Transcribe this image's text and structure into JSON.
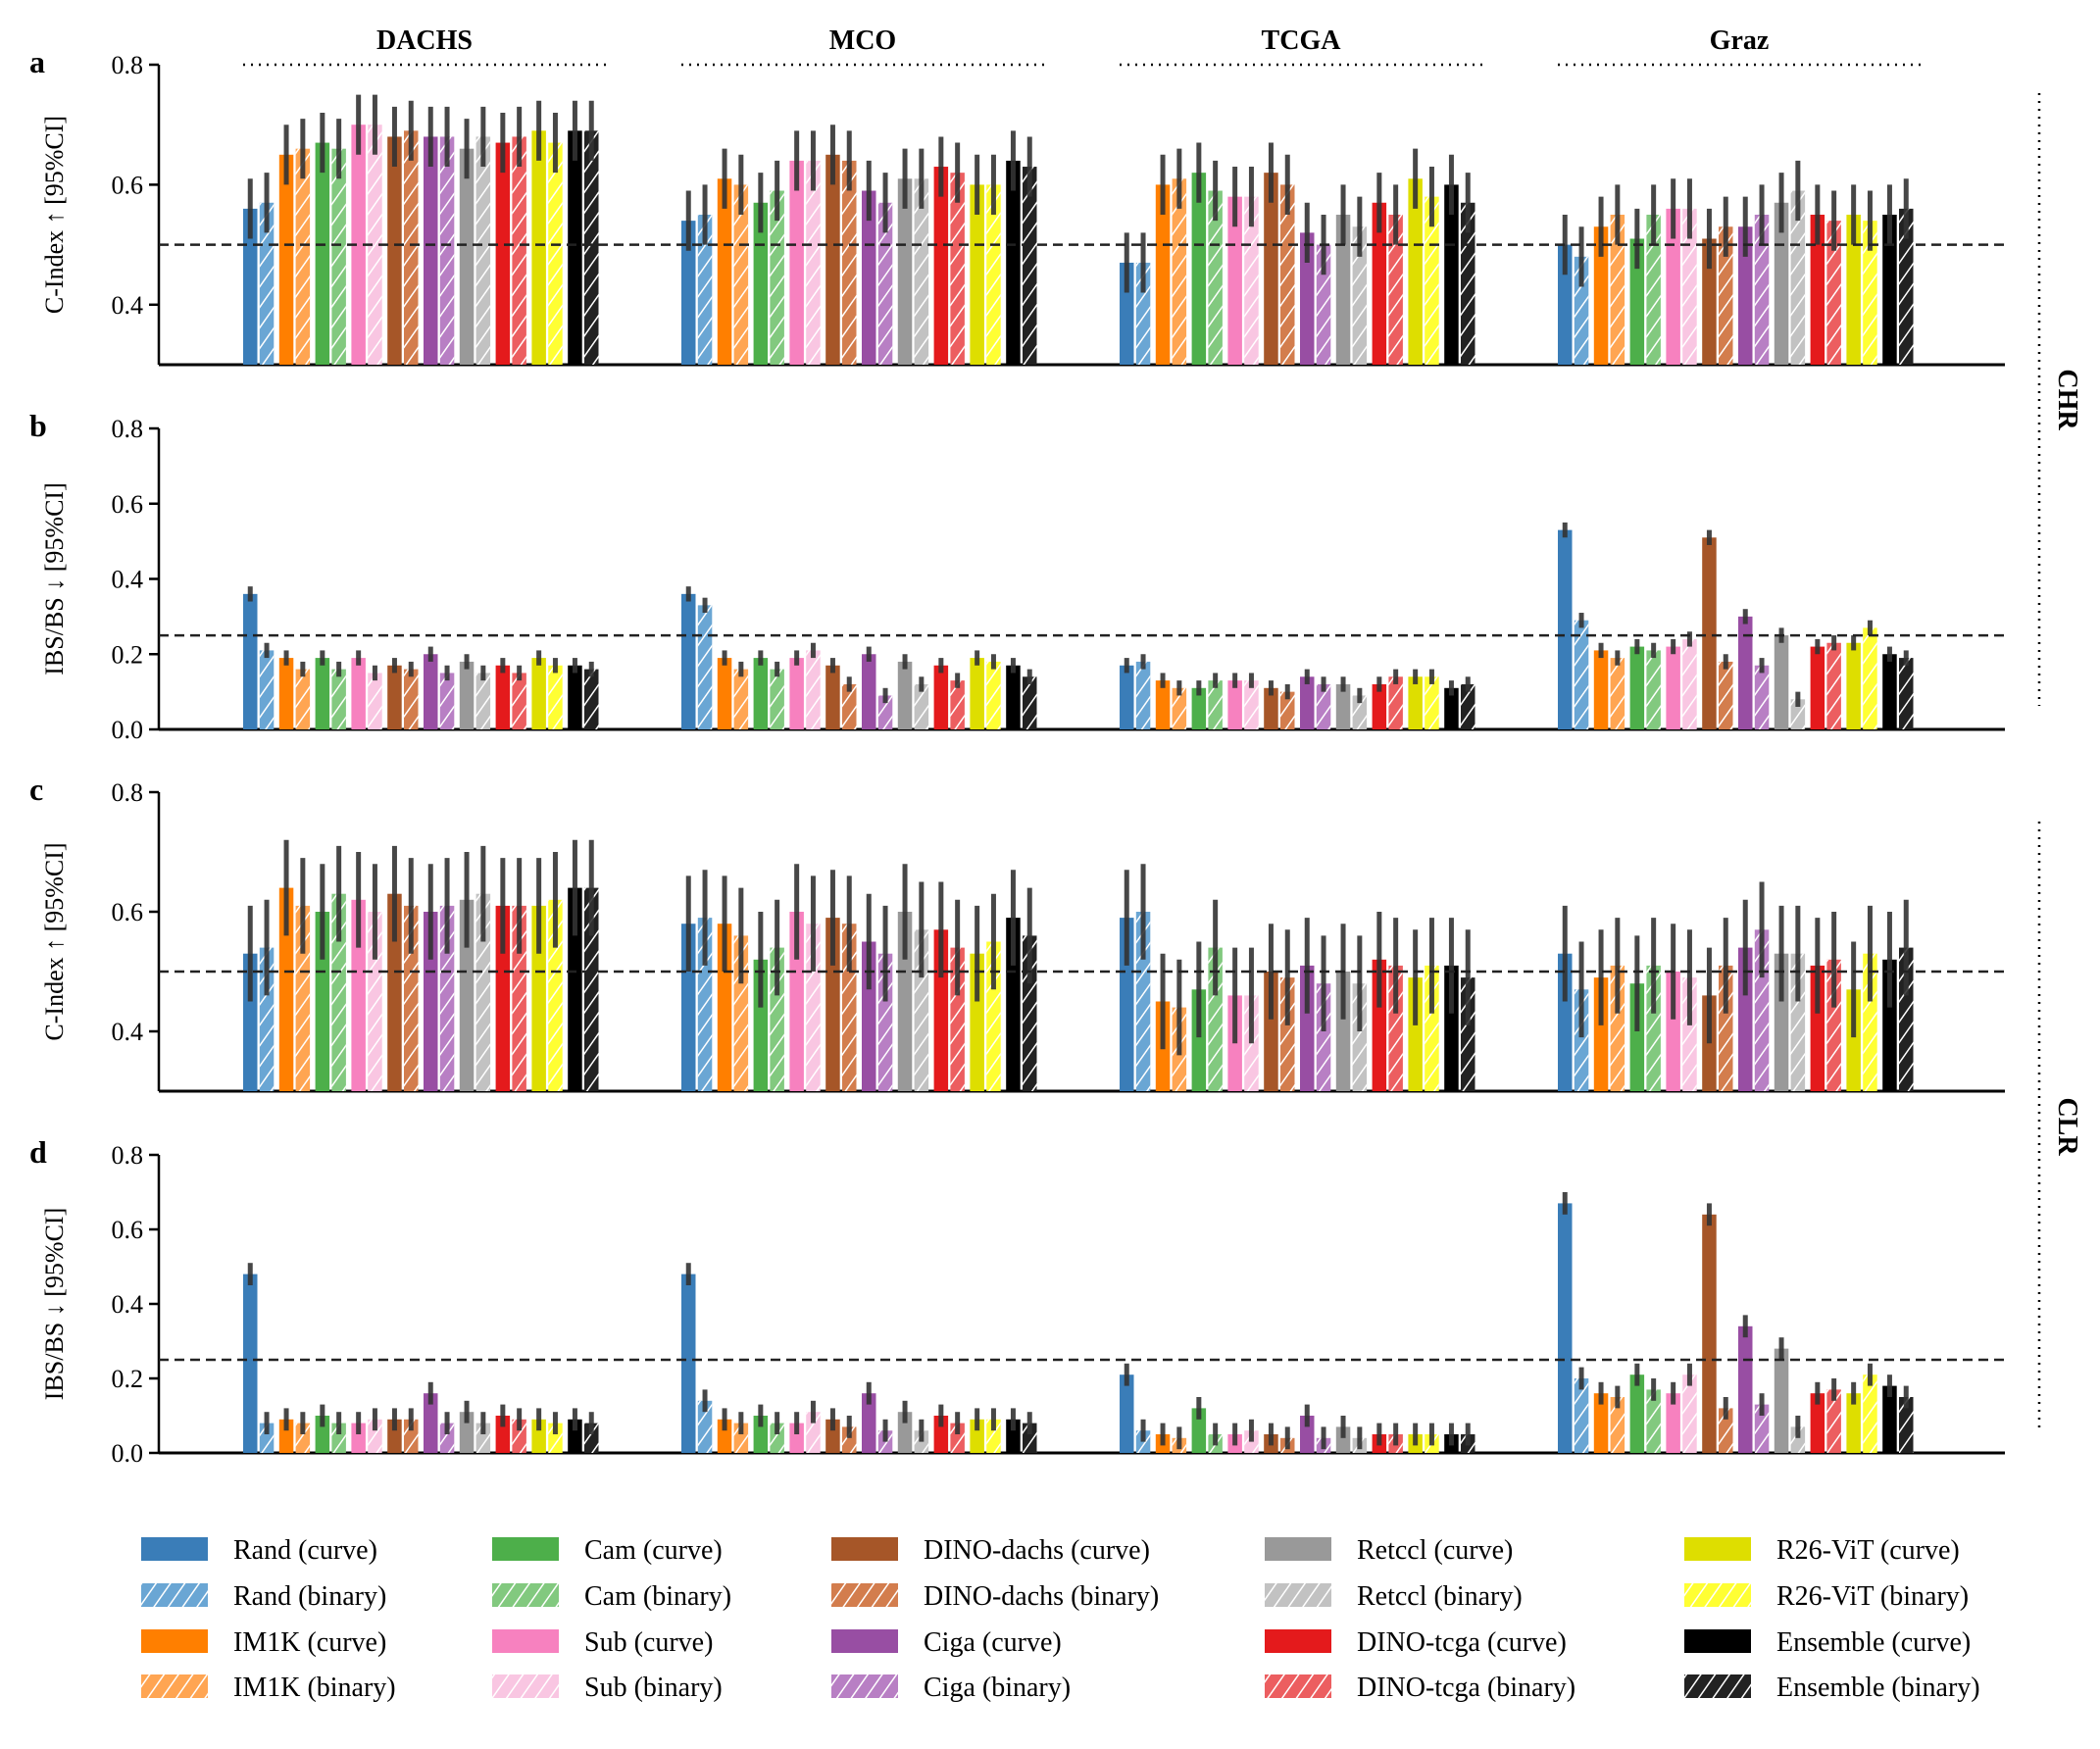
{
  "chart_data": {
    "type": "bar",
    "groups": [
      "DACHS",
      "MCO",
      "TCGA",
      "Graz"
    ],
    "side_labels": [
      "CHR",
      "CLR"
    ],
    "series": [
      {
        "name": "Rand (curve)",
        "color": "#3a7db8",
        "hatch": false
      },
      {
        "name": "Rand (binary)",
        "color": "#6aa6d4",
        "hatch": true
      },
      {
        "name": "IM1K (curve)",
        "color": "#ff7f00",
        "hatch": false
      },
      {
        "name": "IM1K (binary)",
        "color": "#ffa552",
        "hatch": true
      },
      {
        "name": "Cam (curve)",
        "color": "#4daf4a",
        "hatch": false
      },
      {
        "name": "Cam (binary)",
        "color": "#82c97f",
        "hatch": true
      },
      {
        "name": "Sub (curve)",
        "color": "#f781bf",
        "hatch": false
      },
      {
        "name": "Sub (binary)",
        "color": "#f9c6e2",
        "hatch": true
      },
      {
        "name": "DINO-dachs (curve)",
        "color": "#a65628",
        "hatch": false
      },
      {
        "name": "DINO-dachs (binary)",
        "color": "#d37d4d",
        "hatch": true
      },
      {
        "name": "Ciga (curve)",
        "color": "#984ea3",
        "hatch": false
      },
      {
        "name": "Ciga (binary)",
        "color": "#b87fc4",
        "hatch": true
      },
      {
        "name": "Retccl (curve)",
        "color": "#999999",
        "hatch": false
      },
      {
        "name": "Retccl (binary)",
        "color": "#c2c2c2",
        "hatch": true
      },
      {
        "name": "DINO-tcga (curve)",
        "color": "#e41a1c",
        "hatch": false
      },
      {
        "name": "DINO-tcga (binary)",
        "color": "#ec5e60",
        "hatch": true
      },
      {
        "name": "R26-ViT (curve)",
        "color": "#dede00",
        "hatch": false
      },
      {
        "name": "R26-ViT (binary)",
        "color": "#ffff33",
        "hatch": true
      },
      {
        "name": "Ensemble (curve)",
        "color": "#000000",
        "hatch": false
      },
      {
        "name": "Ensemble (binary)",
        "color": "#222222",
        "hatch": true
      }
    ],
    "panels": [
      {
        "letter": "a",
        "ylabel": "C-Index ↑ [95%CI]",
        "ylim": [
          0.3,
          0.8
        ],
        "yticks": [
          "0.4",
          "0.6",
          "0.8"
        ],
        "ytick_values": [
          0.4,
          0.6,
          0.8
        ],
        "reference_line": 0.5,
        "values": [
          [
            0.56,
            0.57,
            0.65,
            0.66,
            0.67,
            0.66,
            0.7,
            0.7,
            0.68,
            0.69,
            0.68,
            0.68,
            0.66,
            0.68,
            0.67,
            0.68,
            0.69,
            0.67,
            0.69,
            0.69
          ],
          [
            0.54,
            0.55,
            0.61,
            0.6,
            0.57,
            0.59,
            0.64,
            0.64,
            0.65,
            0.64,
            0.59,
            0.57,
            0.61,
            0.61,
            0.63,
            0.62,
            0.6,
            0.6,
            0.64,
            0.63
          ],
          [
            0.47,
            0.47,
            0.6,
            0.61,
            0.62,
            0.59,
            0.58,
            0.58,
            0.62,
            0.6,
            0.52,
            0.5,
            0.55,
            0.53,
            0.57,
            0.55,
            0.61,
            0.58,
            0.6,
            0.57
          ],
          [
            0.5,
            0.48,
            0.53,
            0.55,
            0.51,
            0.55,
            0.56,
            0.56,
            0.51,
            0.53,
            0.53,
            0.55,
            0.57,
            0.59,
            0.55,
            0.54,
            0.55,
            0.54,
            0.55,
            0.56
          ]
        ],
        "ci_halfwidth": 0.05
      },
      {
        "letter": "b",
        "ylabel": "IBS/BS ↓ [95%CI]",
        "ylim": [
          0.0,
          0.8
        ],
        "yticks": [
          "0.0",
          "0.2",
          "0.4",
          "0.6",
          "0.8"
        ],
        "ytick_values": [
          0.0,
          0.2,
          0.4,
          0.6,
          0.8
        ],
        "reference_line": 0.25,
        "values": [
          [
            0.36,
            0.21,
            0.19,
            0.16,
            0.19,
            0.16,
            0.19,
            0.15,
            0.17,
            0.16,
            0.2,
            0.15,
            0.18,
            0.15,
            0.17,
            0.15,
            0.19,
            0.17,
            0.17,
            0.16
          ],
          [
            0.36,
            0.33,
            0.19,
            0.16,
            0.19,
            0.16,
            0.19,
            0.21,
            0.17,
            0.12,
            0.2,
            0.09,
            0.18,
            0.12,
            0.17,
            0.13,
            0.19,
            0.18,
            0.17,
            0.14
          ],
          [
            0.17,
            0.18,
            0.13,
            0.11,
            0.11,
            0.13,
            0.13,
            0.13,
            0.11,
            0.1,
            0.14,
            0.12,
            0.12,
            0.09,
            0.12,
            0.14,
            0.14,
            0.14,
            0.11,
            0.12
          ],
          [
            0.53,
            0.29,
            0.21,
            0.19,
            0.22,
            0.21,
            0.22,
            0.24,
            0.51,
            0.18,
            0.3,
            0.17,
            0.25,
            0.08,
            0.22,
            0.23,
            0.23,
            0.27,
            0.2,
            0.19
          ]
        ],
        "ci_halfwidth": 0.02
      },
      {
        "letter": "c",
        "ylabel": "C-Index ↑ [95%CI]",
        "ylim": [
          0.3,
          0.8
        ],
        "yticks": [
          "0.4",
          "0.6",
          "0.8"
        ],
        "ytick_values": [
          0.4,
          0.6,
          0.8
        ],
        "reference_line": 0.5,
        "values": [
          [
            0.53,
            0.54,
            0.64,
            0.61,
            0.6,
            0.63,
            0.62,
            0.6,
            0.63,
            0.61,
            0.6,
            0.61,
            0.62,
            0.63,
            0.61,
            0.61,
            0.61,
            0.62,
            0.64,
            0.64
          ],
          [
            0.58,
            0.59,
            0.58,
            0.56,
            0.52,
            0.54,
            0.6,
            0.58,
            0.59,
            0.58,
            0.55,
            0.53,
            0.6,
            0.57,
            0.57,
            0.54,
            0.53,
            0.55,
            0.59,
            0.56
          ],
          [
            0.59,
            0.6,
            0.45,
            0.44,
            0.47,
            0.54,
            0.46,
            0.46,
            0.5,
            0.49,
            0.51,
            0.48,
            0.5,
            0.48,
            0.52,
            0.51,
            0.49,
            0.51,
            0.51,
            0.49
          ],
          [
            0.53,
            0.47,
            0.49,
            0.51,
            0.48,
            0.51,
            0.5,
            0.49,
            0.46,
            0.51,
            0.54,
            0.57,
            0.53,
            0.53,
            0.51,
            0.52,
            0.47,
            0.53,
            0.52,
            0.54
          ]
        ],
        "ci_halfwidth": 0.08
      },
      {
        "letter": "d",
        "ylabel": "IBS/BS ↓ [95%CI]",
        "ylim": [
          0.0,
          0.8
        ],
        "yticks": [
          "0.0",
          "0.2",
          "0.4",
          "0.6",
          "0.8"
        ],
        "ytick_values": [
          0.0,
          0.2,
          0.4,
          0.6,
          0.8
        ],
        "reference_line": 0.25,
        "values": [
          [
            0.48,
            0.08,
            0.09,
            0.08,
            0.1,
            0.08,
            0.08,
            0.09,
            0.09,
            0.09,
            0.16,
            0.08,
            0.11,
            0.08,
            0.1,
            0.09,
            0.09,
            0.08,
            0.09,
            0.08
          ],
          [
            0.48,
            0.14,
            0.09,
            0.08,
            0.1,
            0.08,
            0.08,
            0.11,
            0.09,
            0.07,
            0.16,
            0.06,
            0.11,
            0.06,
            0.1,
            0.08,
            0.09,
            0.09,
            0.09,
            0.08
          ],
          [
            0.21,
            0.06,
            0.05,
            0.04,
            0.12,
            0.05,
            0.05,
            0.06,
            0.05,
            0.04,
            0.1,
            0.04,
            0.07,
            0.04,
            0.05,
            0.05,
            0.05,
            0.05,
            0.05,
            0.05
          ],
          [
            0.67,
            0.2,
            0.16,
            0.15,
            0.21,
            0.17,
            0.16,
            0.21,
            0.64,
            0.12,
            0.34,
            0.13,
            0.28,
            0.07,
            0.16,
            0.17,
            0.16,
            0.21,
            0.18,
            0.15
          ]
        ],
        "ci_halfwidth": 0.03
      }
    ],
    "legend_placement": "bottom",
    "grid": false
  }
}
